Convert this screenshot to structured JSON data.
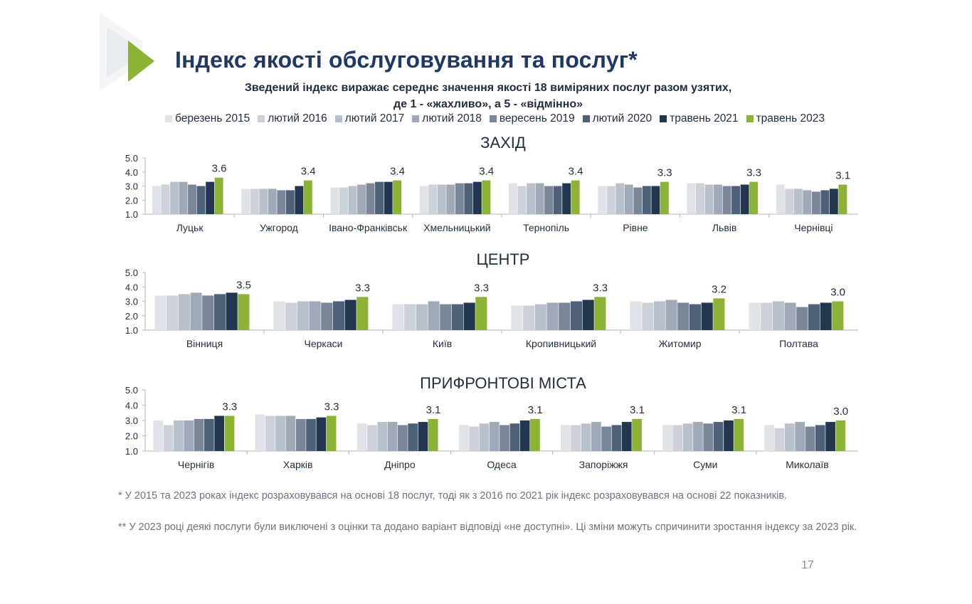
{
  "title": "Індекс якості обслуговування та послуг*",
  "subtitle_line1": "Зведений індекс виражає середнє значення якості 18 виміряних послуг разом узятих,",
  "subtitle_line2": "де 1 - «жахливо», а 5 - «відмінно»",
  "legend": [
    {
      "label": "березень 2015",
      "color": "#dfe2e7"
    },
    {
      "label": "лютий 2016",
      "color": "#cdd2da"
    },
    {
      "label": "лютий 2017",
      "color": "#b8c0cb"
    },
    {
      "label": "лютий 2018",
      "color": "#9fa9b7"
    },
    {
      "label": "вересень 2019",
      "color": "#7a8798"
    },
    {
      "label": "лютий 2020",
      "color": "#4f6079"
    },
    {
      "label": "травень 2021",
      "color": "#23364f"
    },
    {
      "label": "травень 2023",
      "color": "#8cb236"
    }
  ],
  "chart_data": [
    {
      "type": "bar",
      "title": "ЗАХІД",
      "ylim": [
        1.0,
        5.0
      ],
      "yticks": [
        "1.0",
        "2.0",
        "3.0",
        "4.0",
        "5.0"
      ],
      "categories": [
        "Луцьк",
        "Ужгород",
        "Івано-Франківськ",
        "Хмельницький",
        "Тернопіль",
        "Рівне",
        "Львів",
        "Чернівці"
      ],
      "series": [
        {
          "name": "березень 2015",
          "values": [
            3.0,
            2.8,
            2.9,
            3.0,
            3.2,
            3.0,
            3.2,
            3.1
          ]
        },
        {
          "name": "лютий 2016",
          "values": [
            3.1,
            2.8,
            2.9,
            3.1,
            3.0,
            3.0,
            3.2,
            2.8
          ]
        },
        {
          "name": "лютий 2017",
          "values": [
            3.3,
            2.8,
            3.0,
            3.1,
            3.2,
            3.2,
            3.1,
            2.8
          ]
        },
        {
          "name": "лютий 2018",
          "values": [
            3.3,
            2.8,
            3.1,
            3.1,
            3.2,
            3.1,
            3.1,
            2.7
          ]
        },
        {
          "name": "вересень 2019",
          "values": [
            3.1,
            2.7,
            3.2,
            3.2,
            3.0,
            2.9,
            3.0,
            2.6
          ]
        },
        {
          "name": "лютий 2020",
          "values": [
            3.0,
            2.7,
            3.3,
            3.2,
            3.0,
            3.0,
            3.0,
            2.7
          ]
        },
        {
          "name": "травень 2021",
          "values": [
            3.3,
            3.0,
            3.3,
            3.3,
            3.2,
            3.0,
            3.1,
            2.8
          ]
        },
        {
          "name": "травень 2023",
          "values": [
            3.6,
            3.4,
            3.4,
            3.4,
            3.4,
            3.3,
            3.3,
            3.1
          ]
        }
      ],
      "data_labels": [
        "3.6",
        "3.4",
        "3.4",
        "3.4",
        "3.4",
        "3.3",
        "3.3",
        "3.1"
      ]
    },
    {
      "type": "bar",
      "title": "ЦЕНТР",
      "ylim": [
        1.0,
        5.0
      ],
      "yticks": [
        "1.0",
        "2.0",
        "3.0",
        "4.0",
        "5.0"
      ],
      "categories": [
        "Вінниця",
        "Черкаси",
        "Київ",
        "Кропивницький",
        "Житомир",
        "Полтава"
      ],
      "series": [
        {
          "name": "березень 2015",
          "values": [
            3.4,
            3.0,
            2.8,
            2.7,
            3.0,
            2.9
          ]
        },
        {
          "name": "лютий 2016",
          "values": [
            3.4,
            2.9,
            2.8,
            2.7,
            2.9,
            2.9
          ]
        },
        {
          "name": "лютий 2017",
          "values": [
            3.5,
            3.0,
            2.8,
            2.8,
            3.0,
            3.0
          ]
        },
        {
          "name": "лютий 2018",
          "values": [
            3.6,
            3.0,
            3.0,
            2.9,
            3.1,
            2.9
          ]
        },
        {
          "name": "вересень 2019",
          "values": [
            3.4,
            2.9,
            2.8,
            2.9,
            2.9,
            2.6
          ]
        },
        {
          "name": "лютий 2020",
          "values": [
            3.5,
            3.0,
            2.8,
            3.0,
            2.8,
            2.8
          ]
        },
        {
          "name": "травень 2021",
          "values": [
            3.6,
            3.1,
            2.9,
            3.1,
            2.9,
            2.9
          ]
        },
        {
          "name": "травень 2023",
          "values": [
            3.5,
            3.3,
            3.3,
            3.3,
            3.2,
            3.0
          ]
        }
      ],
      "data_labels": [
        "3.5",
        "3.3",
        "3.3",
        "3.3",
        "3.2",
        "3.0"
      ]
    },
    {
      "type": "bar",
      "title": "ПРИФРОНТОВІ МІСТА",
      "ylim": [
        1.0,
        5.0
      ],
      "yticks": [
        "1.0",
        "2.0",
        "3.0",
        "4.0",
        "5.0"
      ],
      "categories": [
        "Чернігів",
        "Харків",
        "Дніпро",
        "Одеса",
        "Запоріжжя",
        "Суми",
        "Миколаїв"
      ],
      "series": [
        {
          "name": "березень 2015",
          "values": [
            3.0,
            3.4,
            2.8,
            2.7,
            2.7,
            2.7,
            2.7
          ]
        },
        {
          "name": "лютий 2016",
          "values": [
            2.7,
            3.3,
            2.7,
            2.6,
            2.7,
            2.7,
            2.5
          ]
        },
        {
          "name": "лютий 2017",
          "values": [
            3.0,
            3.3,
            2.9,
            2.8,
            2.8,
            2.8,
            2.8
          ]
        },
        {
          "name": "лютий 2018",
          "values": [
            3.0,
            3.3,
            2.9,
            2.9,
            2.9,
            2.9,
            2.9
          ]
        },
        {
          "name": "вересень 2019",
          "values": [
            3.1,
            3.1,
            2.7,
            2.7,
            2.6,
            2.8,
            2.6
          ]
        },
        {
          "name": "лютий 2020",
          "values": [
            3.1,
            3.1,
            2.8,
            2.8,
            2.7,
            2.9,
            2.7
          ]
        },
        {
          "name": "травень 2021",
          "values": [
            3.3,
            3.2,
            2.9,
            3.0,
            2.9,
            3.0,
            2.9
          ]
        },
        {
          "name": "травень 2023",
          "values": [
            3.3,
            3.3,
            3.1,
            3.1,
            3.1,
            3.1,
            3.0
          ]
        }
      ],
      "data_labels": [
        "3.3",
        "3.3",
        "3.1",
        "3.1",
        "3.1",
        "3.1",
        "3.0"
      ]
    }
  ],
  "footnote1": "* У 2015 та 2023 роках індекс розраховувався на основі 18 послуг, тоді як з 2016 по 2021 рік індекс розраховувався на основі 22 показників.",
  "footnote2": "** У 2023 році деякі послуги були виключені з оцінки та додано варіант відповіді «не доступні». Ці зміни можуть спричинити зростання індексу за 2023 рік.",
  "page_number": "17"
}
